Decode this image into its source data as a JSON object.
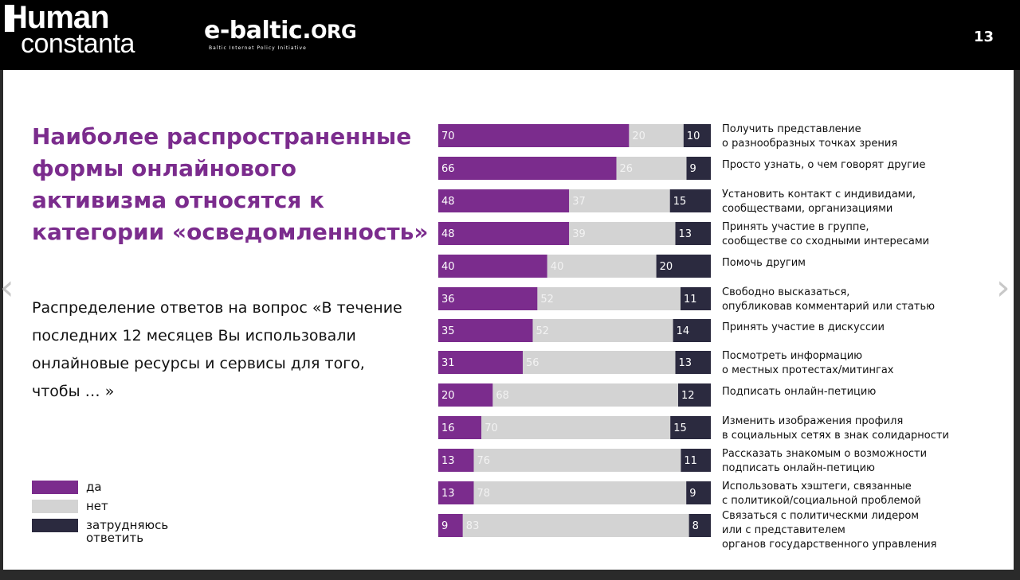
{
  "header": {
    "logo_line1": "Human",
    "logo_line2": "constanta",
    "partner_main": "e-baltic.",
    "partner_org": "ORG",
    "partner_sub": "Baltic Internet Policy Initiative",
    "page_number": "13"
  },
  "title": "Наиболее распространенные формы онлайнового активизма относятся к категории «осведомленность»",
  "subtitle": "Распределение ответов на вопрос «В течение последних 12 месяцев Вы использовали онлайновые ресурсы и сервисы для того, чтобы … »",
  "colors": {
    "yes": "#7b2c8d",
    "no": "#d3d3d3",
    "unsure": "#2b2a3f"
  },
  "legend": [
    {
      "label": "да",
      "key": "yes"
    },
    {
      "label": "нет",
      "key": "no"
    },
    {
      "label": "затрудняюсь\nответить",
      "key": "unsure"
    }
  ],
  "chart_data": {
    "type": "bar",
    "orientation": "horizontal",
    "stacked": true,
    "categories": [
      [
        "Получить представление",
        "о разнообразных точках зрения"
      ],
      [
        "Просто узнать, о чем говорят другие"
      ],
      [
        "Установить контакт с индивидами,",
        "сообществами, организациями"
      ],
      [
        "Принять участие в группе,",
        "сообществе со сходными интересами"
      ],
      [
        "Помочь другим"
      ],
      [
        "Свободно высказаться,",
        "опубликовав комментарий или статью"
      ],
      [
        "Принять участие в дискуссии"
      ],
      [
        "Посмотреть информацию",
        "о местных протестах/митингах"
      ],
      [
        "Подписать онлайн-петицию"
      ],
      [
        "Изменить изображения профиля",
        "в социальных сетях в знак солидарности"
      ],
      [
        "Рассказать знакомым о возможности",
        "подписать онлайн-петицию"
      ],
      [
        "Использовать хэштеги, связанные",
        "с политикой/социальной проблемой"
      ],
      [
        "Связаться с политическми лидером",
        "или с представителем",
        "органов государственного управления"
      ]
    ],
    "series": [
      {
        "name": "да",
        "values": [
          70,
          66,
          48,
          48,
          40,
          36,
          35,
          31,
          20,
          16,
          13,
          13,
          9
        ]
      },
      {
        "name": "нет",
        "values": [
          20,
          26,
          37,
          39,
          40,
          52,
          52,
          56,
          68,
          70,
          76,
          78,
          83
        ]
      },
      {
        "name": "затрудняюсь ответить",
        "values": [
          10,
          9,
          15,
          13,
          20,
          11,
          14,
          13,
          12,
          15,
          11,
          9,
          8
        ]
      }
    ],
    "unit": "%",
    "xlim": [
      0,
      100
    ],
    "grid": false,
    "legend_position": "bottom-left"
  }
}
